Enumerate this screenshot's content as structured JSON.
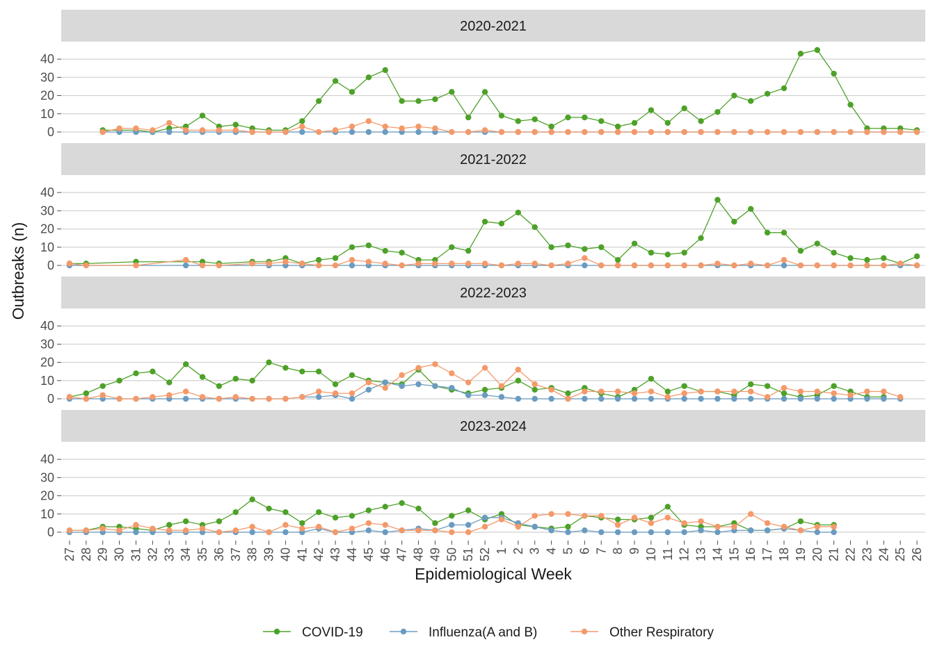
{
  "chart_data": {
    "type": "line",
    "xlabel": "Epidemiological Week",
    "ylabel": "Outbreaks (n)",
    "ylim": [
      0,
      45
    ],
    "yticks": [
      0,
      10,
      20,
      30,
      40
    ],
    "grid": true,
    "legend_position": "bottom",
    "x": [
      "27",
      "28",
      "29",
      "30",
      "31",
      "32",
      "33",
      "34",
      "35",
      "36",
      "37",
      "38",
      "39",
      "40",
      "41",
      "42",
      "43",
      "44",
      "45",
      "46",
      "47",
      "48",
      "49",
      "50",
      "51",
      "52",
      "1",
      "2",
      "3",
      "4",
      "5",
      "6",
      "7",
      "8",
      "9",
      "10",
      "11",
      "12",
      "13",
      "14",
      "15",
      "16",
      "17",
      "18",
      "19",
      "20",
      "21",
      "22",
      "23",
      "24",
      "25",
      "26"
    ],
    "series_meta": [
      {
        "name": "COVID-19",
        "color": "#4da128"
      },
      {
        "name": "Influenza(A and B)",
        "color": "#6a9bc0"
      },
      {
        "name": "Other Respiratory",
        "color": "#f4996a"
      }
    ],
    "panels": [
      {
        "title": "2020-2021",
        "series": [
          {
            "name": "COVID-19",
            "values": [
              null,
              null,
              1,
              1,
              1,
              0,
              2,
              3,
              9,
              3,
              4,
              2,
              1,
              1,
              6,
              17,
              28,
              22,
              30,
              34,
              17,
              17,
              18,
              22,
              8,
              22,
              9,
              6,
              7,
              3,
              8,
              8,
              6,
              3,
              5,
              12,
              5,
              13,
              6,
              11,
              20,
              17,
              21,
              24,
              43,
              45,
              32,
              15,
              2,
              2,
              2,
              1
            ]
          },
          {
            "name": "Influenza(A and B)",
            "values": [
              null,
              null,
              0,
              0,
              0,
              0,
              0,
              0,
              0,
              0,
              0,
              0,
              0,
              0,
              0,
              null,
              0,
              0,
              0,
              0,
              0,
              0,
              0,
              null,
              0,
              0,
              0,
              0,
              0,
              0,
              0,
              0,
              0,
              0,
              0,
              0,
              0,
              0,
              0,
              0,
              0,
              0,
              0,
              0,
              0,
              0,
              0,
              0,
              0,
              0,
              0,
              0
            ]
          },
          {
            "name": "Other Respiratory",
            "values": [
              null,
              null,
              0,
              2,
              2,
              1,
              5,
              1,
              1,
              1,
              1,
              0,
              0,
              0,
              3,
              0,
              1,
              3,
              6,
              3,
              2,
              3,
              2,
              0,
              0,
              1,
              0,
              0,
              0,
              0,
              0,
              0,
              0,
              0,
              0,
              0,
              0,
              0,
              0,
              0,
              0,
              0,
              0,
              0,
              0,
              0,
              0,
              0,
              0,
              0,
              0,
              0
            ]
          }
        ]
      },
      {
        "title": "2021-2022",
        "series": [
          {
            "name": "COVID-19",
            "values": [
              1,
              1,
              null,
              null,
              2,
              null,
              null,
              null,
              2,
              1,
              null,
              2,
              2,
              4,
              1,
              3,
              4,
              10,
              11,
              8,
              7,
              3,
              3,
              10,
              8,
              24,
              23,
              29,
              21,
              10,
              11,
              9,
              10,
              3,
              12,
              7,
              6,
              7,
              15,
              36,
              24,
              31,
              18,
              18,
              8,
              12,
              7,
              4,
              3,
              4,
              1,
              5
            ]
          },
          {
            "name": "Influenza(A and B)",
            "values": [
              0,
              null,
              null,
              null,
              null,
              null,
              null,
              0,
              null,
              null,
              null,
              null,
              0,
              0,
              0,
              null,
              null,
              0,
              0,
              0,
              0,
              0,
              0,
              0,
              0,
              0,
              0,
              0,
              0,
              0,
              0,
              0,
              0,
              0,
              0,
              0,
              0,
              0,
              0,
              0,
              0,
              0,
              0,
              0,
              0,
              0,
              0,
              0,
              0,
              0,
              0,
              0
            ]
          },
          {
            "name": "Other Respiratory",
            "values": [
              1,
              0,
              null,
              null,
              0,
              null,
              null,
              3,
              0,
              0,
              null,
              1,
              1,
              2,
              1,
              0,
              0,
              3,
              2,
              1,
              0,
              1,
              1,
              1,
              1,
              1,
              0,
              1,
              1,
              0,
              1,
              4,
              0,
              0,
              0,
              0,
              0,
              0,
              0,
              1,
              0,
              1,
              0,
              3,
              0,
              0,
              0,
              0,
              0,
              0,
              1,
              0
            ]
          }
        ]
      },
      {
        "title": "2022-2023",
        "series": [
          {
            "name": "COVID-19",
            "values": [
              1,
              3,
              7,
              10,
              14,
              15,
              9,
              19,
              12,
              7,
              11,
              10,
              20,
              17,
              15,
              15,
              8,
              13,
              10,
              9,
              8,
              16,
              7,
              5,
              3,
              5,
              6,
              10,
              5,
              6,
              3,
              6,
              3,
              1,
              5,
              11,
              4,
              7,
              4,
              4,
              2,
              8,
              7,
              3,
              1,
              2,
              7,
              4,
              1,
              1,
              null,
              null
            ]
          },
          {
            "name": "Influenza(A and B)",
            "values": [
              0,
              0,
              0,
              0,
              0,
              0,
              0,
              0,
              0,
              0,
              0,
              0,
              0,
              0,
              1,
              1,
              2,
              0,
              5,
              9,
              7,
              8,
              7,
              6,
              2,
              2,
              1,
              0,
              0,
              0,
              0,
              0,
              0,
              0,
              0,
              0,
              0,
              0,
              0,
              0,
              0,
              0,
              0,
              0,
              0,
              0,
              0,
              0,
              0,
              0,
              0,
              null
            ]
          },
          {
            "name": "Other Respiratory",
            "values": [
              1,
              0,
              2,
              0,
              0,
              1,
              2,
              4,
              1,
              0,
              1,
              0,
              0,
              0,
              1,
              4,
              3,
              3,
              9,
              6,
              13,
              17,
              19,
              14,
              9,
              17,
              7,
              16,
              8,
              5,
              0,
              4,
              4,
              4,
              3,
              4,
              1,
              3,
              4,
              4,
              4,
              4,
              1,
              6,
              4,
              4,
              3,
              2,
              4,
              4,
              1,
              null
            ]
          }
        ]
      },
      {
        "title": "2023-2024",
        "series": [
          {
            "name": "COVID-19",
            "values": [
              1,
              1,
              3,
              3,
              2,
              1,
              4,
              6,
              4,
              6,
              11,
              18,
              13,
              11,
              5,
              11,
              8,
              9,
              12,
              14,
              16,
              13,
              5,
              9,
              12,
              7,
              10,
              4,
              3,
              2,
              3,
              9,
              8,
              7,
              7,
              8,
              14,
              4,
              3,
              3,
              5,
              1,
              1,
              2,
              6,
              4,
              4,
              null,
              null,
              null,
              null,
              null
            ]
          },
          {
            "name": "Influenza(A and B)",
            "values": [
              0,
              0,
              0,
              0,
              0,
              0,
              0,
              0,
              0,
              0,
              0,
              0,
              0,
              0,
              0,
              2,
              0,
              0,
              1,
              0,
              1,
              2,
              1,
              4,
              4,
              8,
              8,
              5,
              3,
              1,
              0,
              1,
              0,
              0,
              0,
              0,
              0,
              0,
              1,
              0,
              1,
              1,
              1,
              2,
              1,
              0,
              0,
              null,
              null,
              null,
              null,
              null
            ]
          },
          {
            "name": "Other Respiratory",
            "values": [
              1,
              1,
              2,
              1,
              4,
              2,
              1,
              1,
              2,
              0,
              1,
              3,
              0,
              4,
              2,
              3,
              0,
              2,
              5,
              4,
              1,
              1,
              1,
              0,
              0,
              3,
              7,
              3,
              9,
              10,
              10,
              9,
              9,
              4,
              8,
              5,
              8,
              5,
              6,
              3,
              3,
              10,
              5,
              3,
              1,
              3,
              3,
              null,
              null,
              null,
              null,
              null
            ]
          }
        ]
      }
    ]
  }
}
